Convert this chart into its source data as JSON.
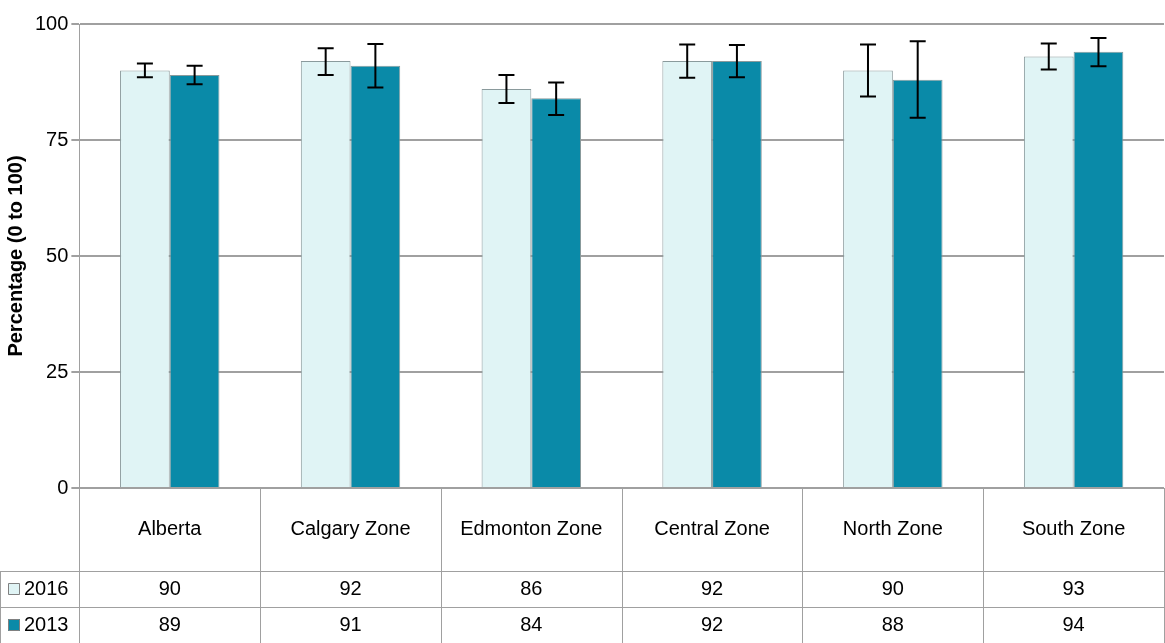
{
  "chart_data": {
    "type": "bar",
    "ylabel": "Percentage (0 to 100)",
    "categories": [
      "Alberta",
      "Calgary Zone",
      "Edmonton Zone",
      "Central Zone",
      "North Zone",
      "South Zone"
    ],
    "series": [
      {
        "name": "2016",
        "color": "#e0f4f5",
        "values": [
          90,
          92,
          86,
          92,
          90,
          93
        ],
        "errors": [
          [
            88.5,
            91.5
          ],
          [
            89,
            94.8
          ],
          [
            83,
            89
          ],
          [
            88.4,
            95.6
          ],
          [
            84.4,
            95.6
          ],
          [
            90.2,
            95.8
          ]
        ]
      },
      {
        "name": "2013",
        "color": "#0a8aa8",
        "values": [
          89,
          91,
          84,
          92,
          88,
          94
        ],
        "errors": [
          [
            87,
            91
          ],
          [
            86.3,
            95.7
          ],
          [
            80.4,
            87.4
          ],
          [
            88.5,
            95.5
          ],
          [
            79.8,
            96.3
          ],
          [
            90.9,
            97
          ]
        ]
      }
    ],
    "ylim": [
      0,
      100
    ],
    "yticks": [
      0,
      25,
      50,
      75,
      100
    ],
    "grid": "y",
    "legend": "bottom left",
    "data_labels": true
  }
}
